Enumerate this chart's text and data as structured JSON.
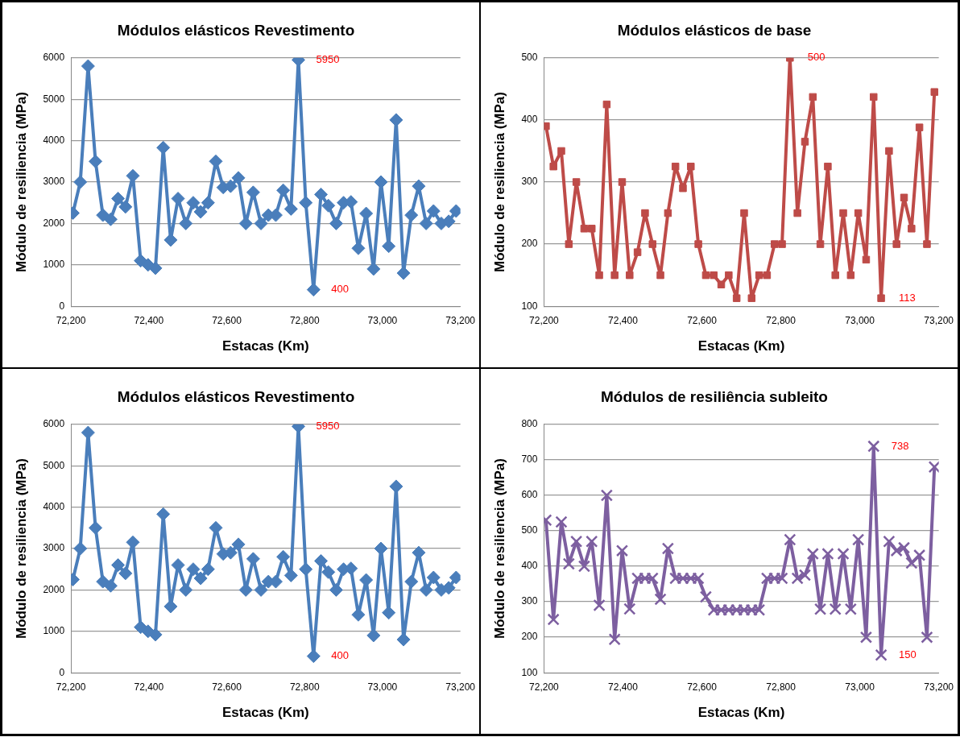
{
  "chart_data": [
    {
      "type": "line",
      "title": "Módulos elásticos Revestimento",
      "xlabel": "Estacas (Km)",
      "ylabel": "Módulo de resiliencia (MPa)",
      "x": [
        72205,
        72224,
        72244,
        72263,
        72282,
        72302,
        72321,
        72340,
        72359,
        72379,
        72398,
        72417,
        72437,
        72456,
        72475,
        72495,
        72514,
        72533,
        72552,
        72572,
        72591,
        72610,
        72630,
        72649,
        72668,
        72688,
        72707,
        72726,
        72745,
        72765,
        72784,
        72803,
        72823,
        72842,
        72861,
        72881,
        72900,
        72919,
        72938,
        72958,
        72977,
        72996,
        73016,
        73035,
        73054,
        73074,
        73093,
        73112,
        73131,
        73151,
        73170,
        73189
      ],
      "series": [
        {
          "color": "#4a7ebb",
          "values": [
            2250,
            3000,
            5800,
            3500,
            2200,
            2100,
            2600,
            2400,
            3150,
            1100,
            1000,
            920,
            3830,
            1600,
            2600,
            2000,
            2500,
            2280,
            2500,
            3500,
            2870,
            2900,
            3100,
            2000,
            2750,
            2000,
            2200,
            2200,
            2800,
            2350,
            5950,
            2500,
            400,
            2700,
            2430,
            2000,
            2500,
            2520,
            1400,
            2240,
            900,
            3000,
            1450,
            4500,
            800,
            2200,
            2900,
            2000,
            2300,
            2000,
            2050,
            2300
          ]
        }
      ],
      "xlim": [
        72200,
        73200
      ],
      "xticks": [
        {
          "value": 72200,
          "label": "72,200"
        },
        {
          "value": 72400,
          "label": "72,400"
        },
        {
          "value": 72600,
          "label": "72,600"
        },
        {
          "value": 72800,
          "label": "72,800"
        },
        {
          "value": 73000,
          "label": "73,000"
        },
        {
          "value": 73200,
          "label": "73,200"
        }
      ],
      "ylim": [
        0,
        6000
      ],
      "yticks": [
        0,
        1000,
        2000,
        3000,
        4000,
        5000,
        6000
      ],
      "grid": "y",
      "marker": "diamond",
      "line_style": "solid",
      "annotations": [
        {
          "text": "5950",
          "x": 72784,
          "y": 5950
        },
        {
          "text": "400",
          "x": 72823,
          "y": 400
        }
      ]
    },
    {
      "type": "line",
      "title": "Módulos elásticos de base",
      "xlabel": "Estacas (Km)",
      "ylabel": "Módulo de resiliencia (MPa)",
      "x": [
        72205,
        72224,
        72244,
        72263,
        72282,
        72302,
        72321,
        72340,
        72359,
        72379,
        72398,
        72417,
        72437,
        72456,
        72475,
        72495,
        72514,
        72533,
        72552,
        72572,
        72591,
        72610,
        72630,
        72649,
        72668,
        72688,
        72707,
        72726,
        72745,
        72765,
        72784,
        72803,
        72823,
        72842,
        72861,
        72881,
        72900,
        72919,
        72938,
        72958,
        72977,
        72996,
        73016,
        73035,
        73054,
        73074,
        73093,
        73112,
        73131,
        73151,
        73170,
        73189
      ],
      "series": [
        {
          "color": "#be4b48",
          "values": [
            390,
            325,
            350,
            200,
            300,
            225,
            225,
            150,
            425,
            150,
            300,
            150,
            187,
            250,
            200,
            150,
            250,
            325,
            290,
            325,
            200,
            150,
            150,
            135,
            150,
            113,
            250,
            113,
            150,
            150,
            200,
            200,
            500,
            250,
            365,
            437,
            200,
            325,
            150,
            250,
            150,
            250,
            175,
            437,
            113,
            350,
            200,
            275,
            225,
            388,
            200,
            445
          ]
        }
      ],
      "xlim": [
        72200,
        73200
      ],
      "xticks": [
        {
          "value": 72200,
          "label": "72,200"
        },
        {
          "value": 72400,
          "label": "72,400"
        },
        {
          "value": 72600,
          "label": "72,600"
        },
        {
          "value": 72800,
          "label": "72,800"
        },
        {
          "value": 73000,
          "label": "73,000"
        },
        {
          "value": 73200,
          "label": "73,200"
        }
      ],
      "ylim": [
        100,
        500
      ],
      "yticks": [
        100,
        200,
        300,
        400,
        500
      ],
      "grid": "y",
      "marker": "square",
      "line_style": "solid",
      "annotations": [
        {
          "text": "500",
          "x": 72823,
          "y": 500
        },
        {
          "text": "113",
          "x": 73054,
          "y": 113
        }
      ]
    },
    {
      "type": "line",
      "title": "Módulos elásticos Revestimento",
      "xlabel": "Estacas (Km)",
      "ylabel": "Módulo de resiliencia (MPa)",
      "x": [
        72205,
        72224,
        72244,
        72263,
        72282,
        72302,
        72321,
        72340,
        72359,
        72379,
        72398,
        72417,
        72437,
        72456,
        72475,
        72495,
        72514,
        72533,
        72552,
        72572,
        72591,
        72610,
        72630,
        72649,
        72668,
        72688,
        72707,
        72726,
        72745,
        72765,
        72784,
        72803,
        72823,
        72842,
        72861,
        72881,
        72900,
        72919,
        72938,
        72958,
        72977,
        72996,
        73016,
        73035,
        73054,
        73074,
        73093,
        73112,
        73131,
        73151,
        73170,
        73189
      ],
      "series": [
        {
          "color": "#4a7ebb",
          "values": [
            2250,
            3000,
            5800,
            3500,
            2200,
            2100,
            2600,
            2400,
            3150,
            1100,
            1000,
            920,
            3830,
            1600,
            2600,
            2000,
            2500,
            2280,
            2500,
            3500,
            2870,
            2900,
            3100,
            2000,
            2750,
            2000,
            2200,
            2200,
            2800,
            2350,
            5950,
            2500,
            400,
            2700,
            2430,
            2000,
            2500,
            2520,
            1400,
            2240,
            900,
            3000,
            1450,
            4500,
            800,
            2200,
            2900,
            2000,
            2300,
            2000,
            2050,
            2300
          ]
        }
      ],
      "xlim": [
        72200,
        73200
      ],
      "xticks": [
        {
          "value": 72200,
          "label": "72,200"
        },
        {
          "value": 72400,
          "label": "72,400"
        },
        {
          "value": 72600,
          "label": "72,600"
        },
        {
          "value": 72800,
          "label": "72,800"
        },
        {
          "value": 73000,
          "label": "73,000"
        },
        {
          "value": 73200,
          "label": "73,200"
        }
      ],
      "ylim": [
        0,
        6000
      ],
      "yticks": [
        0,
        1000,
        2000,
        3000,
        4000,
        5000,
        6000
      ],
      "grid": "y",
      "marker": "diamond",
      "line_style": "solid",
      "annotations": [
        {
          "text": "5950",
          "x": 72784,
          "y": 5950
        },
        {
          "text": "400",
          "x": 72823,
          "y": 400
        }
      ]
    },
    {
      "type": "line",
      "title": "Módulos de resiliência subleito",
      "xlabel": "Estacas (Km)",
      "ylabel": "Módulo de resiliencia (MPa)",
      "x": [
        72205,
        72224,
        72244,
        72263,
        72282,
        72302,
        72321,
        72340,
        72359,
        72379,
        72398,
        72417,
        72437,
        72456,
        72475,
        72495,
        72514,
        72533,
        72552,
        72572,
        72591,
        72610,
        72630,
        72649,
        72668,
        72688,
        72707,
        72726,
        72745,
        72765,
        72784,
        72803,
        72823,
        72842,
        72861,
        72881,
        72900,
        72919,
        72938,
        72958,
        72977,
        72996,
        73016,
        73035,
        73054,
        73074,
        73093,
        73112,
        73131,
        73151,
        73170,
        73189
      ],
      "series": [
        {
          "color": "#7d5fa0",
          "values": [
            530,
            250,
            525,
            407,
            470,
            400,
            470,
            290,
            600,
            194,
            444,
            280,
            366,
            366,
            366,
            307,
            450,
            366,
            366,
            366,
            366,
            314,
            277,
            277,
            277,
            277,
            277,
            277,
            277,
            366,
            366,
            366,
            475,
            366,
            375,
            435,
            279,
            435,
            279,
            435,
            279,
            475,
            200,
            738,
            150,
            470,
            444,
            452,
            409,
            431,
            200,
            680
          ]
        }
      ],
      "xlim": [
        72200,
        73200
      ],
      "xticks": [
        {
          "value": 72200,
          "label": "72,200"
        },
        {
          "value": 72400,
          "label": "72,400"
        },
        {
          "value": 72600,
          "label": "72,600"
        },
        {
          "value": 72800,
          "label": "72,800"
        },
        {
          "value": 73000,
          "label": "73,000"
        },
        {
          "value": 73200,
          "label": "73,200"
        }
      ],
      "ylim": [
        100,
        800
      ],
      "yticks": [
        100,
        200,
        300,
        400,
        500,
        600,
        700,
        800
      ],
      "grid": "y",
      "marker": "cross",
      "line_style": "solid",
      "annotations": [
        {
          "text": "738",
          "x": 73035,
          "y": 738
        },
        {
          "text": "150",
          "x": 73054,
          "y": 150
        }
      ]
    }
  ]
}
